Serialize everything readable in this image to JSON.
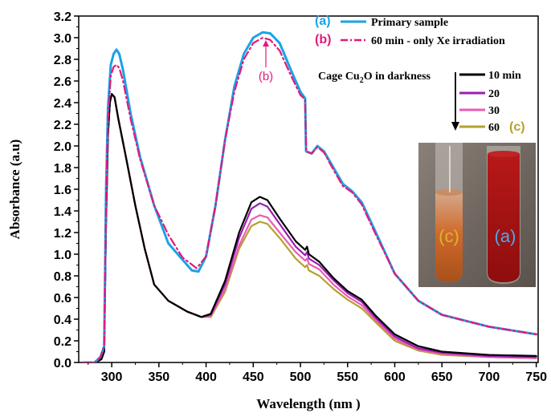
{
  "chart_data": {
    "type": "line",
    "xlabel": "Wavelength (nm )",
    "ylabel": "Absorbance (a.u)",
    "xlim": [
      265,
      752
    ],
    "ylim": [
      0,
      3.2
    ],
    "x_ticks": [
      "300",
      "350",
      "400",
      "450",
      "500",
      "550",
      "600",
      "650",
      "700",
      "750"
    ],
    "y_ticks": [
      "0.0",
      "0.2",
      "0.4",
      "0.6",
      "0.8",
      "1.0",
      "1.2",
      "1.4",
      "1.6",
      "1.8",
      "2.0",
      "2.2",
      "2.4",
      "2.6",
      "2.8",
      "3.0",
      "3.2"
    ],
    "series": [
      {
        "name": "Primary sample",
        "tag": "(a)",
        "color": "#1aa3e6",
        "dash": "solid",
        "points": [
          [
            270,
            0.0
          ],
          [
            282,
            0.0
          ],
          [
            288,
            0.05
          ],
          [
            292,
            0.15
          ],
          [
            294,
            1.6
          ],
          [
            296,
            2.35
          ],
          [
            299,
            2.75
          ],
          [
            302,
            2.85
          ],
          [
            305,
            2.89
          ],
          [
            308,
            2.85
          ],
          [
            312,
            2.7
          ],
          [
            320,
            2.3
          ],
          [
            330,
            1.9
          ],
          [
            345,
            1.45
          ],
          [
            360,
            1.1
          ],
          [
            375,
            0.95
          ],
          [
            385,
            0.85
          ],
          [
            392,
            0.84
          ],
          [
            400,
            0.98
          ],
          [
            410,
            1.45
          ],
          [
            420,
            2.05
          ],
          [
            430,
            2.55
          ],
          [
            440,
            2.85
          ],
          [
            450,
            3.0
          ],
          [
            460,
            3.05
          ],
          [
            468,
            3.04
          ],
          [
            478,
            2.95
          ],
          [
            490,
            2.7
          ],
          [
            500,
            2.5
          ],
          [
            505,
            2.44
          ],
          [
            506,
            1.95
          ],
          [
            512,
            1.93
          ],
          [
            518,
            2.0
          ],
          [
            525,
            1.95
          ],
          [
            535,
            1.8
          ],
          [
            545,
            1.65
          ],
          [
            555,
            1.58
          ],
          [
            565,
            1.48
          ],
          [
            580,
            1.2
          ],
          [
            600,
            0.82
          ],
          [
            625,
            0.57
          ],
          [
            650,
            0.44
          ],
          [
            700,
            0.33
          ],
          [
            750,
            0.26
          ]
        ]
      },
      {
        "name": "60 min - only Xe irradiation",
        "tag": "(b)",
        "color": "#e3197b",
        "dash": "dashdot",
        "points": [
          [
            270,
            0.0
          ],
          [
            282,
            0.0
          ],
          [
            288,
            0.05
          ],
          [
            292,
            0.15
          ],
          [
            294,
            1.5
          ],
          [
            296,
            2.25
          ],
          [
            299,
            2.65
          ],
          [
            302,
            2.73
          ],
          [
            305,
            2.75
          ],
          [
            308,
            2.72
          ],
          [
            312,
            2.6
          ],
          [
            320,
            2.25
          ],
          [
            330,
            1.88
          ],
          [
            345,
            1.45
          ],
          [
            360,
            1.18
          ],
          [
            375,
            0.97
          ],
          [
            390,
            0.87
          ],
          [
            400,
            0.98
          ],
          [
            410,
            1.45
          ],
          [
            420,
            2.05
          ],
          [
            430,
            2.5
          ],
          [
            440,
            2.8
          ],
          [
            450,
            2.95
          ],
          [
            460,
            3.0
          ],
          [
            468,
            2.98
          ],
          [
            478,
            2.88
          ],
          [
            490,
            2.65
          ],
          [
            500,
            2.47
          ],
          [
            505,
            2.43
          ],
          [
            506,
            1.95
          ],
          [
            512,
            1.93
          ],
          [
            518,
            1.99
          ],
          [
            525,
            1.94
          ],
          [
            535,
            1.78
          ],
          [
            545,
            1.63
          ],
          [
            555,
            1.57
          ],
          [
            565,
            1.46
          ],
          [
            580,
            1.18
          ],
          [
            600,
            0.82
          ],
          [
            625,
            0.57
          ],
          [
            650,
            0.44
          ],
          [
            700,
            0.33
          ],
          [
            750,
            0.26
          ]
        ]
      },
      {
        "name": "10 min",
        "color": "#000000",
        "dash": "solid",
        "points": [
          [
            270,
            0.0
          ],
          [
            283,
            0.0
          ],
          [
            289,
            0.03
          ],
          [
            292,
            0.1
          ],
          [
            294,
            1.3
          ],
          [
            296,
            2.1
          ],
          [
            298,
            2.4
          ],
          [
            300,
            2.48
          ],
          [
            303,
            2.45
          ],
          [
            307,
            2.25
          ],
          [
            315,
            1.9
          ],
          [
            325,
            1.45
          ],
          [
            335,
            1.05
          ],
          [
            345,
            0.72
          ],
          [
            360,
            0.57
          ],
          [
            380,
            0.47
          ],
          [
            395,
            0.42
          ],
          [
            405,
            0.45
          ],
          [
            420,
            0.75
          ],
          [
            435,
            1.2
          ],
          [
            448,
            1.48
          ],
          [
            457,
            1.53
          ],
          [
            465,
            1.5
          ],
          [
            478,
            1.33
          ],
          [
            495,
            1.12
          ],
          [
            505,
            1.04
          ],
          [
            507,
            1.07
          ],
          [
            509,
            1.0
          ],
          [
            520,
            0.93
          ],
          [
            535,
            0.78
          ],
          [
            550,
            0.66
          ],
          [
            565,
            0.58
          ],
          [
            580,
            0.43
          ],
          [
            600,
            0.26
          ],
          [
            625,
            0.15
          ],
          [
            650,
            0.1
          ],
          [
            700,
            0.07
          ],
          [
            750,
            0.06
          ]
        ]
      },
      {
        "name": "20",
        "color": "#9a1fb0",
        "dash": "solid",
        "points": [
          [
            270,
            0.0
          ],
          [
            283,
            0.0
          ],
          [
            289,
            0.03
          ],
          [
            292,
            0.1
          ],
          [
            294,
            1.3
          ],
          [
            296,
            2.1
          ],
          [
            298,
            2.4
          ],
          [
            300,
            2.48
          ],
          [
            303,
            2.45
          ],
          [
            307,
            2.25
          ],
          [
            315,
            1.9
          ],
          [
            325,
            1.45
          ],
          [
            335,
            1.05
          ],
          [
            345,
            0.72
          ],
          [
            360,
            0.57
          ],
          [
            380,
            0.47
          ],
          [
            395,
            0.42
          ],
          [
            405,
            0.44
          ],
          [
            420,
            0.72
          ],
          [
            435,
            1.15
          ],
          [
            448,
            1.42
          ],
          [
            457,
            1.47
          ],
          [
            465,
            1.44
          ],
          [
            478,
            1.28
          ],
          [
            495,
            1.07
          ],
          [
            505,
            0.99
          ],
          [
            507,
            1.02
          ],
          [
            509,
            0.96
          ],
          [
            520,
            0.9
          ],
          [
            535,
            0.76
          ],
          [
            550,
            0.64
          ],
          [
            565,
            0.56
          ],
          [
            580,
            0.41
          ],
          [
            600,
            0.24
          ],
          [
            625,
            0.13
          ],
          [
            650,
            0.09
          ],
          [
            700,
            0.06
          ],
          [
            750,
            0.05
          ]
        ]
      },
      {
        "name": "30",
        "color": "#ea5cb7",
        "dash": "solid",
        "points": [
          [
            270,
            0.0
          ],
          [
            283,
            0.0
          ],
          [
            289,
            0.03
          ],
          [
            292,
            0.1
          ],
          [
            294,
            1.3
          ],
          [
            296,
            2.1
          ],
          [
            298,
            2.4
          ],
          [
            300,
            2.48
          ],
          [
            303,
            2.45
          ],
          [
            307,
            2.25
          ],
          [
            315,
            1.9
          ],
          [
            325,
            1.45
          ],
          [
            335,
            1.05
          ],
          [
            345,
            0.72
          ],
          [
            360,
            0.57
          ],
          [
            380,
            0.47
          ],
          [
            395,
            0.42
          ],
          [
            405,
            0.43
          ],
          [
            420,
            0.68
          ],
          [
            435,
            1.08
          ],
          [
            448,
            1.32
          ],
          [
            457,
            1.36
          ],
          [
            465,
            1.34
          ],
          [
            478,
            1.2
          ],
          [
            495,
            1.02
          ],
          [
            505,
            0.94
          ],
          [
            507,
            0.96
          ],
          [
            509,
            0.91
          ],
          [
            520,
            0.86
          ],
          [
            535,
            0.72
          ],
          [
            550,
            0.61
          ],
          [
            565,
            0.53
          ],
          [
            580,
            0.39
          ],
          [
            600,
            0.22
          ],
          [
            625,
            0.12
          ],
          [
            650,
            0.08
          ],
          [
            700,
            0.05
          ],
          [
            750,
            0.04
          ]
        ]
      },
      {
        "name": "60",
        "tag": "(c)",
        "color": "#b5a12e",
        "dash": "solid",
        "points": [
          [
            270,
            0.0
          ],
          [
            283,
            0.0
          ],
          [
            289,
            0.03
          ],
          [
            292,
            0.1
          ],
          [
            294,
            1.3
          ],
          [
            296,
            2.1
          ],
          [
            298,
            2.4
          ],
          [
            300,
            2.48
          ],
          [
            303,
            2.45
          ],
          [
            307,
            2.25
          ],
          [
            315,
            1.9
          ],
          [
            325,
            1.45
          ],
          [
            335,
            1.05
          ],
          [
            345,
            0.72
          ],
          [
            360,
            0.57
          ],
          [
            380,
            0.47
          ],
          [
            395,
            0.42
          ],
          [
            405,
            0.42
          ],
          [
            420,
            0.65
          ],
          [
            435,
            1.05
          ],
          [
            448,
            1.26
          ],
          [
            457,
            1.3
          ],
          [
            465,
            1.28
          ],
          [
            478,
            1.15
          ],
          [
            495,
            0.96
          ],
          [
            505,
            0.88
          ],
          [
            507,
            0.9
          ],
          [
            509,
            0.85
          ],
          [
            520,
            0.8
          ],
          [
            535,
            0.68
          ],
          [
            550,
            0.58
          ],
          [
            565,
            0.5
          ],
          [
            580,
            0.37
          ],
          [
            600,
            0.2
          ],
          [
            625,
            0.11
          ],
          [
            650,
            0.07
          ],
          [
            700,
            0.05
          ],
          [
            750,
            0.04
          ]
        ]
      }
    ],
    "legend_title": "Cage Cu2O in darkness",
    "annotations": {
      "peak_label": "(b)"
    },
    "photo": {
      "tube_left_label": "(c)",
      "tube_right_label": "(a)"
    }
  }
}
